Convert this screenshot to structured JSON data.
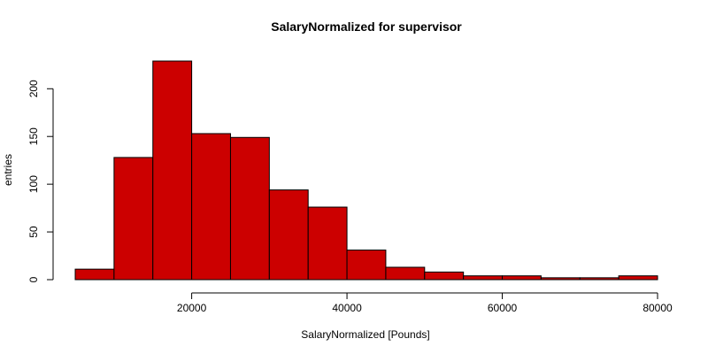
{
  "chart_data": {
    "type": "bar",
    "title": "SalaryNormalized for supervisor",
    "xlabel": "SalaryNormalized [Pounds]",
    "ylabel": "entries",
    "bin_edges": [
      5000,
      10000,
      15000,
      20000,
      25000,
      30000,
      35000,
      40000,
      45000,
      50000,
      55000,
      60000,
      65000,
      70000,
      75000,
      80000
    ],
    "values": [
      11,
      128,
      229,
      153,
      149,
      94,
      76,
      31,
      13,
      8,
      4,
      4,
      2,
      2,
      4
    ],
    "xlim": [
      5000,
      80000
    ],
    "ylim": [
      0,
      229
    ],
    "x_ticks": [
      20000,
      40000,
      60000,
      80000
    ],
    "x_tick_labels": [
      "20000",
      "40000",
      "60000",
      "80000"
    ],
    "y_ticks": [
      0,
      50,
      100,
      150,
      200
    ],
    "y_tick_labels": [
      "0",
      "50",
      "100",
      "150",
      "200"
    ],
    "bar_color": "#CC0000",
    "grid": false,
    "legend": "none"
  }
}
